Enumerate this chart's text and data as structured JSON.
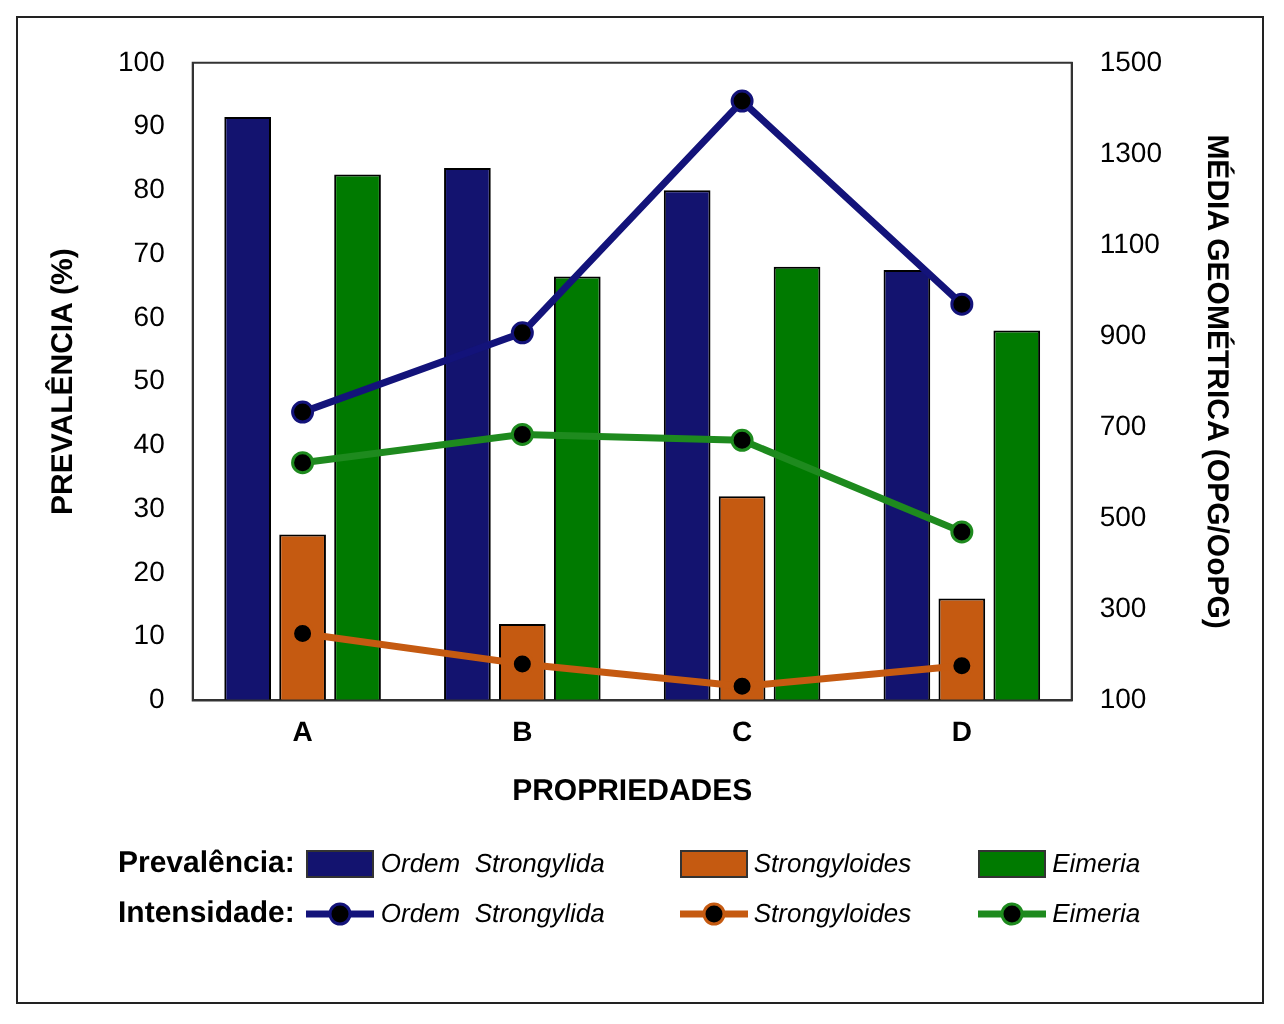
{
  "chart_data": {
    "type": "bar",
    "xlabel": "PROPRIEDADES",
    "ylabel": "PREVALÊNCIA (%)",
    "y2label": "MÉDIA GEOMÉTRICA (OPG/OoPG)",
    "categories": [
      "A",
      "B",
      "C",
      "D"
    ],
    "series": [
      {
        "name": "Ordem  Strongylida",
        "color": "#13136f",
        "values": [
          91.5,
          83.5,
          80,
          67.5
        ]
      },
      {
        "name": "Strongyloides",
        "color": "#c55a11",
        "values": [
          26,
          12,
          32,
          16
        ]
      },
      {
        "name": "Eimeria",
        "color": "#007a00",
        "values": [
          82.5,
          66.5,
          68,
          58
        ]
      },
      {
        "name": "Ordem  Strongylida",
        "type": "line",
        "axis": "y2",
        "color": "#13137a",
        "values": [
          733,
          907,
          1416,
          970
        ]
      },
      {
        "name": "Strongyloides",
        "type": "line",
        "axis": "y2",
        "color": "#c55a11",
        "values": [
          247,
          180,
          131,
          176
        ]
      },
      {
        "name": "Eimeria",
        "type": "line",
        "axis": "y2",
        "color": "#1e8a1e",
        "values": [
          622,
          684,
          671,
          470
        ]
      }
    ],
    "ylim": [
      0,
      100
    ],
    "yticks": [
      0,
      10,
      20,
      30,
      40,
      50,
      60,
      70,
      80,
      90,
      100
    ],
    "y2lim": [
      100,
      1500
    ],
    "y2ticks": [
      100,
      300,
      500,
      700,
      900,
      1100,
      1300,
      1500
    ],
    "annotations": [
      "Prevalência:",
      "Intensidade:"
    ],
    "marker": "circle",
    "grid": false,
    "legend": "bottom"
  }
}
